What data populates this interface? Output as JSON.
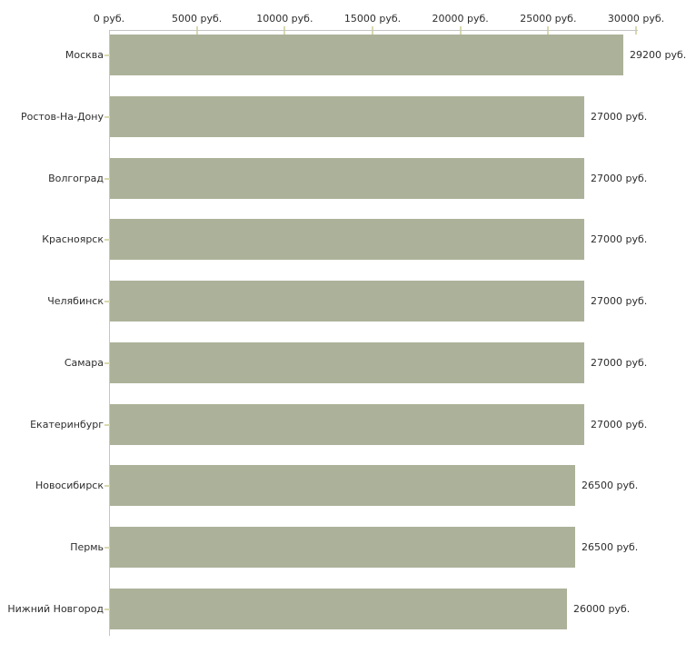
{
  "chart_data": {
    "type": "bar",
    "orientation": "horizontal",
    "title": "",
    "xlabel": "",
    "ylabel": "",
    "xlim": [
      0,
      30000
    ],
    "x_ticks": [
      0,
      5000,
      10000,
      15000,
      20000,
      25000,
      30000
    ],
    "x_tick_labels": [
      "0 руб.",
      "5000 руб.",
      "10000 руб.",
      "15000 руб.",
      "20000 руб.",
      "25000 руб.",
      "30000 руб."
    ],
    "categories": [
      "Москва",
      "Ростов-На-Дону",
      "Волгоград",
      "Красноярск",
      "Челябинск",
      "Самара",
      "Екатеринбург",
      "Новосибирск",
      "Пермь",
      "Нижний Новгород"
    ],
    "values": [
      29200,
      27000,
      27000,
      27000,
      27000,
      27000,
      27000,
      26500,
      26500,
      26000
    ],
    "value_labels": [
      "29200 руб.",
      "27000 руб.",
      "27000 руб.",
      "27000 руб.",
      "27000 руб.",
      "27000 руб.",
      "27000 руб.",
      "26500 руб.",
      "26500 руб.",
      "26000 руб."
    ],
    "grid": false,
    "legend": "none",
    "colors": {
      "bar": "#acb299",
      "axis": "#c5c5c5",
      "tick": "#d9d9ae",
      "text": "#2d2d2d",
      "background": "#ffffff"
    }
  }
}
